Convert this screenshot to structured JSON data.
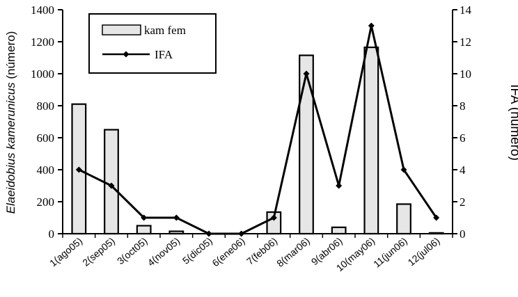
{
  "chart_data": {
    "type": "bar",
    "categories": [
      "1(ago05)",
      "2(sep05)",
      "3(oct05)",
      "4(nov05)",
      "5(dic05)",
      "6(ene06)",
      "7(feb06)",
      "8(mar06)",
      "9(abr06)",
      "10(may06)",
      "11(jun06)",
      "12(jul06)"
    ],
    "series": [
      {
        "name": "kam fem",
        "kind": "bar",
        "axis": "left",
        "values": [
          810,
          650,
          50,
          15,
          0,
          0,
          135,
          1115,
          40,
          1165,
          185,
          5
        ]
      },
      {
        "name": "IFA",
        "kind": "line",
        "axis": "right",
        "values": [
          4,
          3,
          1,
          1,
          0,
          0,
          1,
          10,
          3,
          13,
          4,
          1
        ]
      }
    ],
    "ylabel_italic": "Elaeidobius kamerunicus",
    "ylabel_plain": " (número)",
    "y2label": "IFA (número)",
    "ylim": [
      0,
      1400
    ],
    "yticks": [
      "0",
      "200",
      "400",
      "600",
      "800",
      "1000",
      "1200",
      "1400"
    ],
    "y2lim": [
      0,
      14
    ],
    "y2ticks": [
      "0",
      "2",
      "4",
      "6",
      "8",
      "10",
      "12",
      "14"
    ],
    "grid": false,
    "legend_position": "top-left",
    "colors": {
      "bar_fill": "#e6e6e6",
      "bar_stroke": "#000000",
      "line": "#000000"
    }
  }
}
